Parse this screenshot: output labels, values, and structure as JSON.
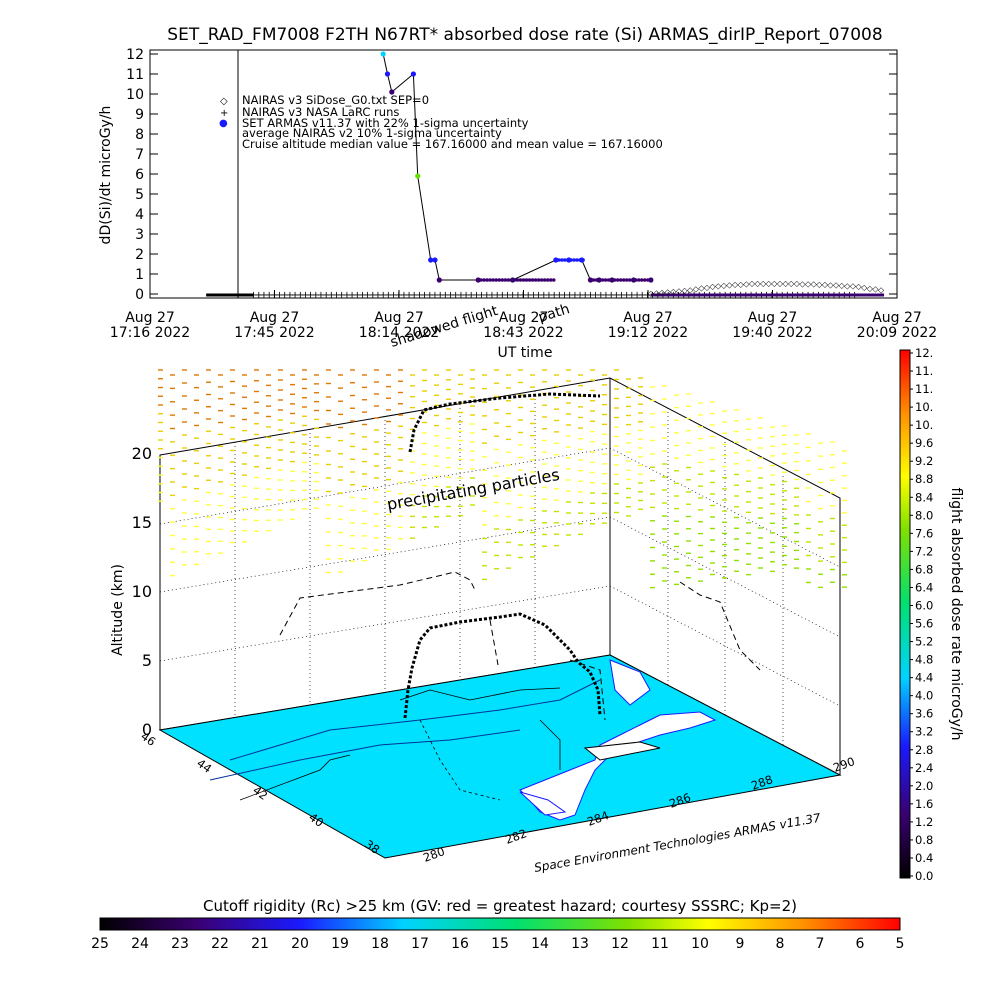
{
  "title": "SET_RAD_FM7008  F2TH N67RT* absorbed dose rate (Si) ARMAS_dirIP_Report_07008",
  "top_panel": {
    "ylabel": "dD(Si)/dt microGy/h",
    "xlabel": "UT time",
    "y_ticks": [
      "0",
      "1",
      "2",
      "3",
      "4",
      "5",
      "6",
      "7",
      "8",
      "9",
      "10",
      "11",
      "12"
    ],
    "x_ticks": [
      {
        "date": "Aug 27",
        "time": "17:16 2022"
      },
      {
        "date": "Aug 27",
        "time": "17:45 2022"
      },
      {
        "date": "Aug 27",
        "time": "18:14 2022"
      },
      {
        "date": "Aug 27",
        "time": "18:43 2022"
      },
      {
        "date": "Aug 27",
        "time": "19:12 2022"
      },
      {
        "date": "Aug 27",
        "time": "19:40 2022"
      },
      {
        "date": "Aug 27",
        "time": "20:09 2022"
      }
    ],
    "legend": [
      {
        "marker": "◇",
        "text": "NAIRAS v3 SiDose_G0.txt SEP=0"
      },
      {
        "marker": "+",
        "text": "NAIRAS v3 NASA LaRC runs"
      },
      {
        "marker": "●",
        "text": "SET ARMAS v11.37 with 22% 1-sigma uncertainty"
      },
      {
        "marker": "",
        "text": "average NAIRAS v2 10% 1-sigma uncertainty"
      },
      {
        "marker": "",
        "text": "Cruise altitude median value = 167.16000 and mean value = 167.16000"
      }
    ],
    "overlay_label_1": "shadowed flight",
    "overlay_label_2": "path"
  },
  "map3d": {
    "zlabel": "Altitude (km)",
    "z_ticks": [
      "0",
      "5",
      "10",
      "15",
      "20"
    ],
    "lat_ticks": [
      "46",
      "44",
      "42",
      "40",
      "38"
    ],
    "lon_ticks": [
      "280",
      "282",
      "284",
      "286",
      "288",
      "290"
    ],
    "annotation": "precipitating particles",
    "credit": "Space Environment Technologies ARMAS v11.37"
  },
  "colorbar_right": {
    "label": "flight absorbed dose rate microGy/h",
    "ticks": [
      "0.0",
      "0.4",
      "0.8",
      "1.2",
      "1.6",
      "2.0",
      "2.4",
      "2.8",
      "3.2",
      "3.6",
      "4.0",
      "4.4",
      "4.8",
      "5.2",
      "5.6",
      "6.0",
      "6.4",
      "6.8",
      "7.2",
      "7.6",
      "8.0",
      "8.4",
      "8.8",
      "9.2",
      "9.6",
      "10.",
      "10.",
      "11.",
      "11.",
      "12."
    ]
  },
  "colorbar_bottom": {
    "label": "Cutoff rigidity (Rc) >25 km (GV: red = greatest hazard; courtesy SSSRC; Kp=2)",
    "ticks": [
      "25",
      "24",
      "23",
      "22",
      "21",
      "20",
      "19",
      "18",
      "17",
      "16",
      "15",
      "14",
      "13",
      "12",
      "11",
      "10",
      "9",
      "8",
      "7",
      "6",
      "5"
    ]
  },
  "chart_data": {
    "type": "scatter",
    "title": "SET_RAD_FM7008  F2TH N67RT* absorbed dose rate (Si) ARMAS_dirIP_Report_07008",
    "xlabel": "UT time",
    "ylabel": "dD(Si)/dt microGy/h",
    "ylim": [
      0,
      12
    ],
    "xlim": [
      "17:16",
      "20:09"
    ],
    "series": [
      {
        "name": "SET ARMAS v11.37 with 22% 1-sigma uncertainty",
        "x": [
          "18:10",
          "18:11",
          "18:12",
          "18:17",
          "18:18",
          "18:21",
          "18:22",
          "18:23",
          "18:32",
          "18:40",
          "18:50",
          "18:53",
          "18:56",
          "18:58",
          "19:00",
          "19:03",
          "19:08",
          "19:12"
        ],
        "y": [
          12.0,
          11.0,
          10.1,
          11.0,
          5.9,
          1.7,
          1.7,
          0.7,
          0.7,
          0.7,
          1.7,
          1.7,
          1.7,
          0.7,
          0.7,
          0.7,
          0.7,
          0.7
        ]
      },
      {
        "name": "NAIRAS v3 SiDose_G0.txt SEP=0",
        "x": [
          "19:12",
          "19:20",
          "19:28",
          "19:36",
          "19:44",
          "19:52",
          "20:00",
          "20:06"
        ],
        "y": [
          0.05,
          0.2,
          0.45,
          0.55,
          0.55,
          0.5,
          0.4,
          0.2
        ]
      },
      {
        "name": "NAIRAS v3 NASA LaRC runs",
        "x": [
          "17:40",
          "18:00",
          "18:20",
          "18:40",
          "19:00",
          "19:20",
          "19:40",
          "20:00"
        ],
        "y": [
          0.0,
          0.0,
          0.0,
          0.0,
          0.0,
          0.0,
          0.0,
          0.0
        ]
      }
    ]
  }
}
